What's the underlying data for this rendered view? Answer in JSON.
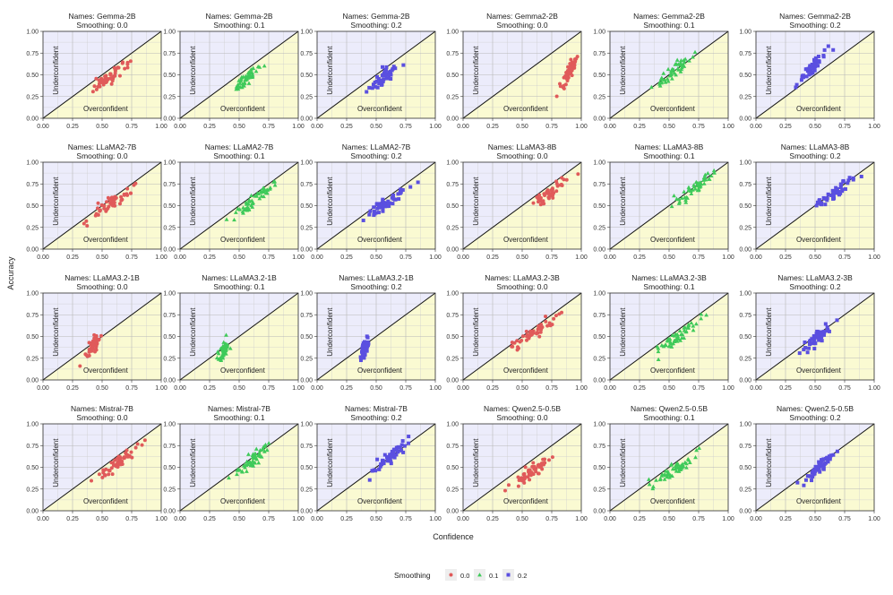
{
  "figure": {
    "xlabel": "Confidence",
    "ylabel": "Accuracy",
    "legend_title": "Smoothing",
    "legend_position": "bottom-center",
    "region_upper_label": "Underconfident",
    "region_lower_label": "Overconfident",
    "tick_labels": [
      "0.00",
      "0.25",
      "0.50",
      "0.75",
      "1.00"
    ],
    "upper_region_color": "#ececfb",
    "lower_region_color": "#fafad2",
    "grid": true
  },
  "legend": [
    {
      "name": "0.0",
      "color": "#e05a5a",
      "shape": "circle"
    },
    {
      "name": "0.1",
      "color": "#3fca5a",
      "shape": "triangle"
    },
    {
      "name": "0.2",
      "color": "#5a4fe0",
      "shape": "square"
    }
  ],
  "chart_data": [
    {
      "type": "scatter",
      "title": "Names: Gemma-2B",
      "subtitle": "Smoothing: 0.0",
      "series": "0.0",
      "xlim": [
        0,
        1
      ],
      "ylim": [
        0,
        1
      ],
      "center": [
        0.55,
        0.45
      ],
      "xspread": 0.12,
      "yspread": 0.12,
      "n": 55,
      "seed": 11
    },
    {
      "type": "scatter",
      "title": "Names: Gemma-2B",
      "subtitle": "Smoothing: 0.1",
      "series": "0.1",
      "xlim": [
        0,
        1
      ],
      "ylim": [
        0,
        1
      ],
      "center": [
        0.55,
        0.45
      ],
      "xspread": 0.1,
      "yspread": 0.12,
      "n": 50,
      "seed": 12
    },
    {
      "type": "scatter",
      "title": "Names: Gemma-2B",
      "subtitle": "Smoothing: 0.2",
      "series": "0.2",
      "xlim": [
        0,
        1
      ],
      "ylim": [
        0,
        1
      ],
      "center": [
        0.55,
        0.46
      ],
      "xspread": 0.1,
      "yspread": 0.11,
      "n": 50,
      "seed": 13
    },
    {
      "type": "scatter",
      "title": "Names: Gemma2-2B",
      "subtitle": "Smoothing: 0.0",
      "series": "0.0",
      "xlim": [
        0,
        1
      ],
      "ylim": [
        0,
        1
      ],
      "center": [
        0.89,
        0.52
      ],
      "xspread": 0.06,
      "yspread": 0.17,
      "n": 60,
      "seed": 14
    },
    {
      "type": "scatter",
      "title": "Names: Gemma2-2B",
      "subtitle": "Smoothing: 0.1",
      "series": "0.1",
      "xlim": [
        0,
        1
      ],
      "ylim": [
        0,
        1
      ],
      "center": [
        0.55,
        0.55
      ],
      "xspread": 0.14,
      "yspread": 0.15,
      "n": 50,
      "seed": 15
    },
    {
      "type": "scatter",
      "title": "Names: Gemma2-2B",
      "subtitle": "Smoothing: 0.2",
      "series": "0.2",
      "xlim": [
        0,
        1
      ],
      "ylim": [
        0,
        1
      ],
      "center": [
        0.47,
        0.58
      ],
      "xspread": 0.1,
      "yspread": 0.15,
      "n": 55,
      "seed": 16
    },
    {
      "type": "scatter",
      "title": "Names: LLaMA2-7B",
      "subtitle": "Smoothing: 0.0",
      "series": "0.0",
      "xlim": [
        0,
        1
      ],
      "ylim": [
        0,
        1
      ],
      "center": [
        0.6,
        0.55
      ],
      "xspread": 0.17,
      "yspread": 0.16,
      "n": 55,
      "seed": 21
    },
    {
      "type": "scatter",
      "title": "Names: LLaMA2-7B",
      "subtitle": "Smoothing: 0.1",
      "series": "0.1",
      "xlim": [
        0,
        1
      ],
      "ylim": [
        0,
        1
      ],
      "center": [
        0.62,
        0.55
      ],
      "xspread": 0.16,
      "yspread": 0.16,
      "n": 55,
      "seed": 22
    },
    {
      "type": "scatter",
      "title": "Names: LLaMA2-7B",
      "subtitle": "Smoothing: 0.2",
      "series": "0.2",
      "xlim": [
        0,
        1
      ],
      "ylim": [
        0,
        1
      ],
      "center": [
        0.6,
        0.55
      ],
      "xspread": 0.17,
      "yspread": 0.17,
      "n": 55,
      "seed": 23
    },
    {
      "type": "scatter",
      "title": "Names: LLaMA3-8B",
      "subtitle": "Smoothing: 0.0",
      "series": "0.0",
      "xlim": [
        0,
        1
      ],
      "ylim": [
        0,
        1
      ],
      "center": [
        0.75,
        0.66
      ],
      "xspread": 0.15,
      "yspread": 0.15,
      "n": 50,
      "seed": 24
    },
    {
      "type": "scatter",
      "title": "Names: LLaMA3-8B",
      "subtitle": "Smoothing: 0.1",
      "series": "0.1",
      "xlim": [
        0,
        1
      ],
      "ylim": [
        0,
        1
      ],
      "center": [
        0.7,
        0.68
      ],
      "xspread": 0.14,
      "yspread": 0.13,
      "n": 50,
      "seed": 25
    },
    {
      "type": "scatter",
      "title": "Names: LLaMA3-8B",
      "subtitle": "Smoothing: 0.2",
      "series": "0.2",
      "xlim": [
        0,
        1
      ],
      "ylim": [
        0,
        1
      ],
      "center": [
        0.65,
        0.64
      ],
      "xspread": 0.15,
      "yspread": 0.14,
      "n": 50,
      "seed": 26
    },
    {
      "type": "scatter",
      "title": "Names: LLaMA3.2-1B",
      "subtitle": "Smoothing: 0.0",
      "series": "0.0",
      "xlim": [
        0,
        1
      ],
      "ylim": [
        0,
        1
      ],
      "center": [
        0.43,
        0.4
      ],
      "xspread": 0.05,
      "yspread": 0.1,
      "n": 55,
      "seed": 31
    },
    {
      "type": "scatter",
      "title": "Names: LLaMA3.2-1B",
      "subtitle": "Smoothing: 0.1",
      "series": "0.1",
      "xlim": [
        0,
        1
      ],
      "ylim": [
        0,
        1
      ],
      "center": [
        0.37,
        0.35
      ],
      "xspread": 0.03,
      "yspread": 0.08,
      "n": 50,
      "seed": 32
    },
    {
      "type": "scatter",
      "title": "Names: LLaMA3.2-1B",
      "subtitle": "Smoothing: 0.2",
      "series": "0.2",
      "xlim": [
        0,
        1
      ],
      "ylim": [
        0,
        1
      ],
      "center": [
        0.4,
        0.36
      ],
      "xspread": 0.03,
      "yspread": 0.09,
      "n": 50,
      "seed": 33
    },
    {
      "type": "scatter",
      "title": "Names: LLaMA3.2-3B",
      "subtitle": "Smoothing: 0.0",
      "series": "0.0",
      "xlim": [
        0,
        1
      ],
      "ylim": [
        0,
        1
      ],
      "center": [
        0.6,
        0.55
      ],
      "xspread": 0.17,
      "yspread": 0.16,
      "n": 55,
      "seed": 34
    },
    {
      "type": "scatter",
      "title": "Names: LLaMA3.2-3B",
      "subtitle": "Smoothing: 0.1",
      "series": "0.1",
      "xlim": [
        0,
        1
      ],
      "ylim": [
        0,
        1
      ],
      "center": [
        0.57,
        0.5
      ],
      "xspread": 0.15,
      "yspread": 0.16,
      "n": 55,
      "seed": 35
    },
    {
      "type": "scatter",
      "title": "Names: LLaMA3.2-3B",
      "subtitle": "Smoothing: 0.2",
      "series": "0.2",
      "xlim": [
        0,
        1
      ],
      "ylim": [
        0,
        1
      ],
      "center": [
        0.52,
        0.5
      ],
      "xspread": 0.13,
      "yspread": 0.15,
      "n": 55,
      "seed": 36
    },
    {
      "type": "scatter",
      "title": "Names: Mistral-7B",
      "subtitle": "Smoothing: 0.0",
      "series": "0.0",
      "xlim": [
        0,
        1
      ],
      "ylim": [
        0,
        1
      ],
      "center": [
        0.65,
        0.58
      ],
      "xspread": 0.18,
      "yspread": 0.2,
      "n": 55,
      "seed": 41
    },
    {
      "type": "scatter",
      "title": "Names: Mistral-7B",
      "subtitle": "Smoothing: 0.1",
      "series": "0.1",
      "xlim": [
        0,
        1
      ],
      "ylim": [
        0,
        1
      ],
      "center": [
        0.62,
        0.6
      ],
      "xspread": 0.15,
      "yspread": 0.18,
      "n": 55,
      "seed": 42
    },
    {
      "type": "scatter",
      "title": "Names: Mistral-7B",
      "subtitle": "Smoothing: 0.2",
      "series": "0.2",
      "xlim": [
        0,
        1
      ],
      "ylim": [
        0,
        1
      ],
      "center": [
        0.63,
        0.63
      ],
      "xspread": 0.14,
      "yspread": 0.15,
      "n": 55,
      "seed": 43
    },
    {
      "type": "scatter",
      "title": "Names: Qwen2.5-0.5B",
      "subtitle": "Smoothing: 0.0",
      "series": "0.0",
      "xlim": [
        0,
        1
      ],
      "ylim": [
        0,
        1
      ],
      "center": [
        0.58,
        0.45
      ],
      "xspread": 0.14,
      "yspread": 0.14,
      "n": 50,
      "seed": 44
    },
    {
      "type": "scatter",
      "title": "Names: Qwen2.5-0.5B",
      "subtitle": "Smoothing: 0.1",
      "series": "0.1",
      "xlim": [
        0,
        1
      ],
      "ylim": [
        0,
        1
      ],
      "center": [
        0.55,
        0.48
      ],
      "xspread": 0.16,
      "yspread": 0.14,
      "n": 55,
      "seed": 45
    },
    {
      "type": "scatter",
      "title": "Names: Qwen2.5-0.5B",
      "subtitle": "Smoothing: 0.2",
      "series": "0.2",
      "xlim": [
        0,
        1
      ],
      "ylim": [
        0,
        1
      ],
      "center": [
        0.52,
        0.48
      ],
      "xspread": 0.14,
      "yspread": 0.15,
      "n": 55,
      "seed": 46
    }
  ]
}
